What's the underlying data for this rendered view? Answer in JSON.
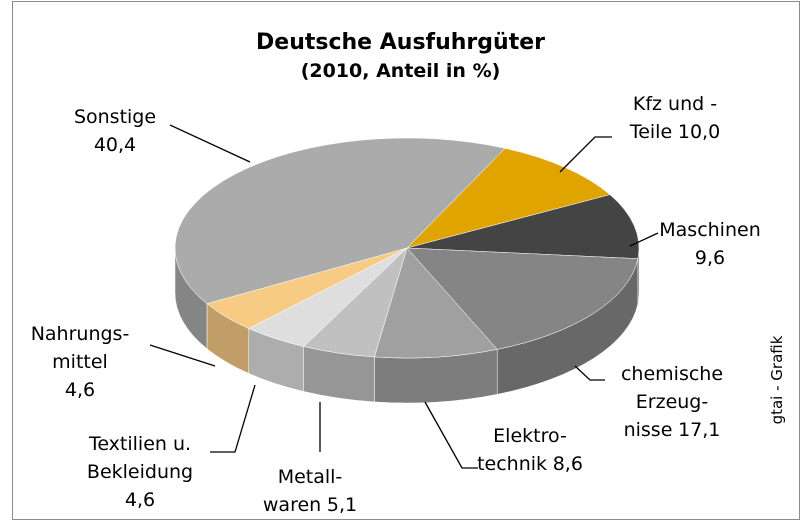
{
  "chart_data": {
    "type": "pie",
    "title": "Deutsche Ausfuhrgüter",
    "subtitle": "(2010, Anteil in %)",
    "categories": [
      "Kfz und -\nTeile",
      "Maschinen",
      "chemische\nErzeug-\nnisse",
      "Elektro-\ntechnik",
      "Metall-\nwaren",
      "Textilien u.\nBekleidung",
      "Nahrungs-\nmittel",
      "Sonstige"
    ],
    "values": [
      10.0,
      9.6,
      17.1,
      8.6,
      5.1,
      4.6,
      4.6,
      40.4
    ],
    "value_labels": [
      "10,0",
      "9,6",
      "17,1",
      "8,6",
      "5,1",
      "4,6",
      "4,6",
      "40,4"
    ],
    "colors": [
      "#e0a400",
      "#444444",
      "#858585",
      "#a0a0a0",
      "#c0c0c0",
      "#dedede",
      "#f8cb84",
      "#ababab"
    ],
    "source": "gtai - Grafik"
  }
}
